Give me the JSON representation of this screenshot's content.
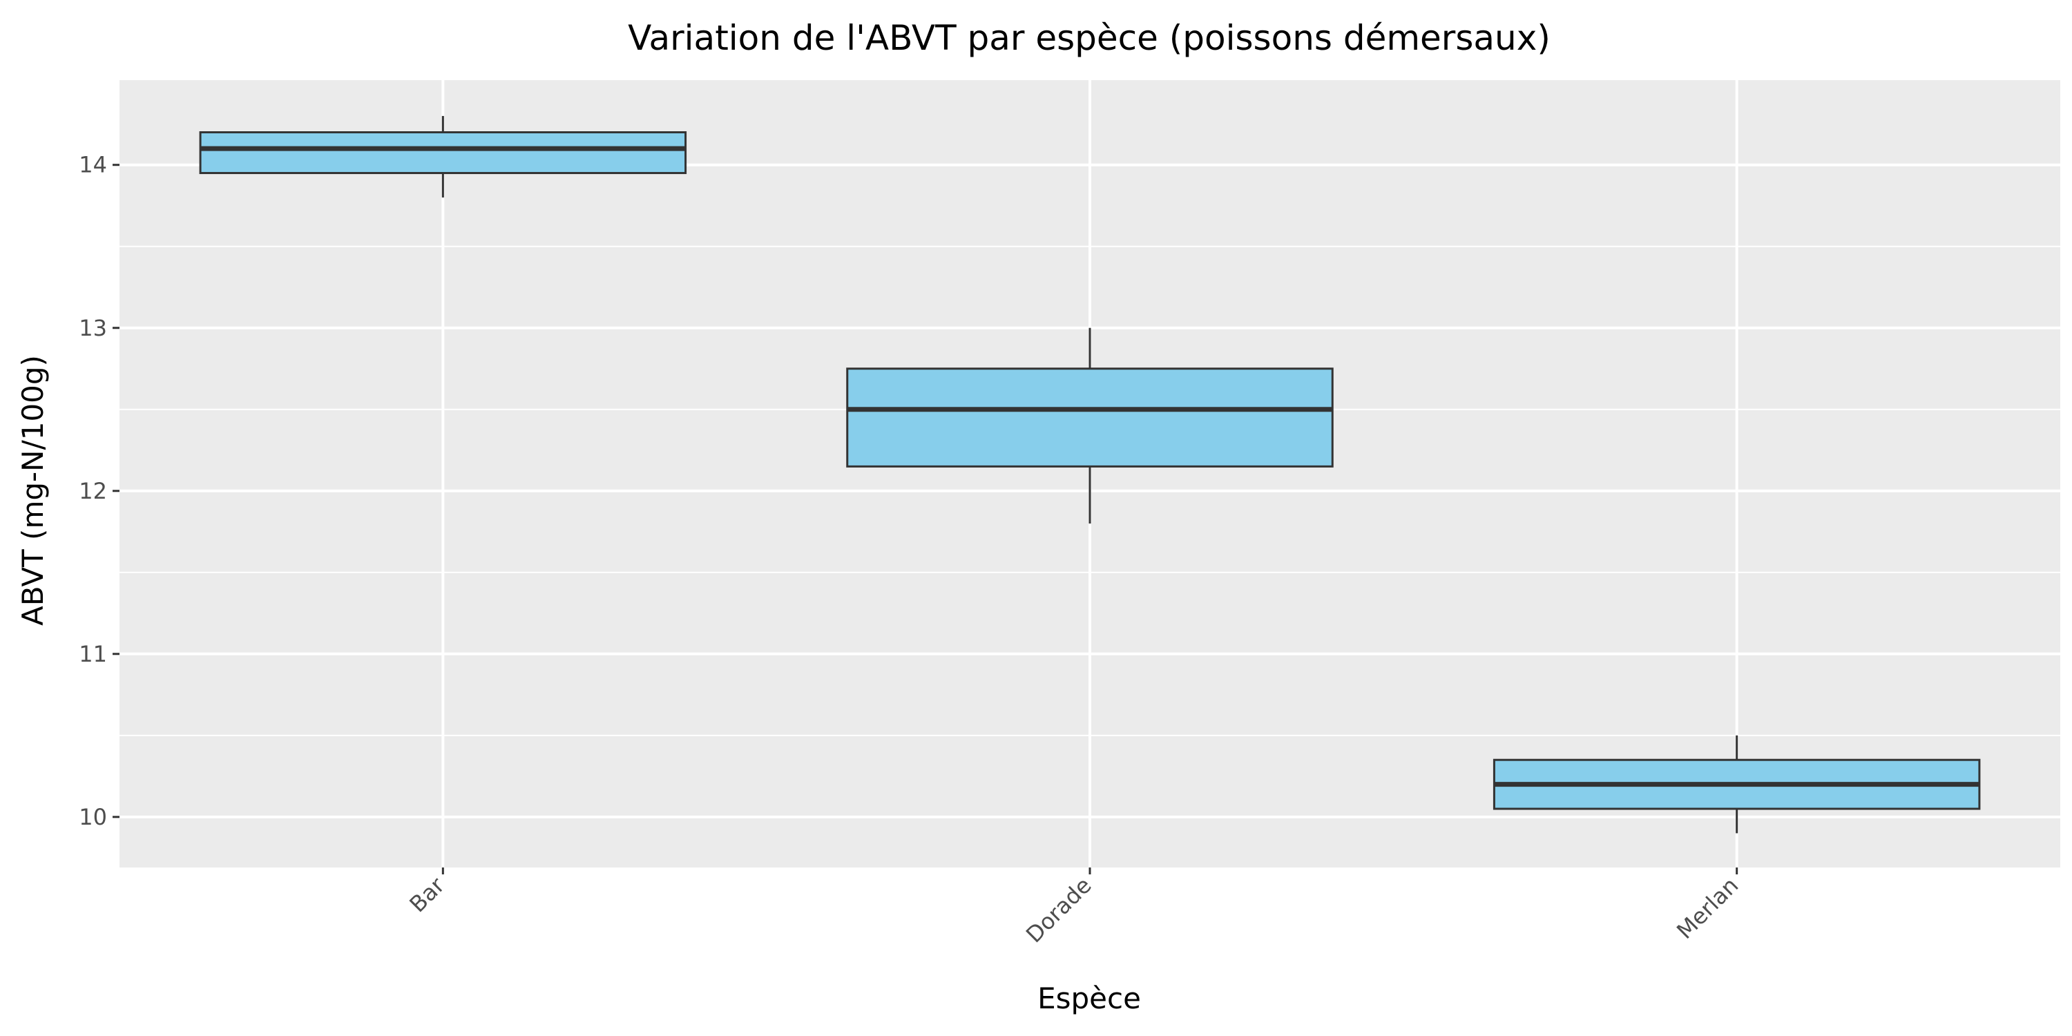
{
  "chart_data": {
    "type": "boxplot",
    "title": "Variation de l'ABVT par espèce (poissons démersaux)",
    "xlabel": "Espèce",
    "ylabel": "ABVT (mg-N/100g)",
    "categories": [
      "Bar",
      "Dorade",
      "Merlan"
    ],
    "boxes": [
      {
        "category": "Bar",
        "whisker_low": 13.8,
        "q1": 13.95,
        "median": 14.1,
        "q3": 14.2,
        "whisker_high": 14.3
      },
      {
        "category": "Dorade",
        "whisker_low": 11.8,
        "q1": 12.15,
        "median": 12.5,
        "q3": 12.75,
        "whisker_high": 13.0
      },
      {
        "category": "Merlan",
        "whisker_low": 9.9,
        "q1": 10.05,
        "median": 10.2,
        "q3": 10.35,
        "whisker_high": 10.5
      }
    ],
    "ylim": [
      9.69,
      14.52
    ],
    "yticks": [
      10,
      11,
      12,
      13,
      14
    ],
    "grid": true,
    "legend": "none",
    "colors": {
      "box_fill": "#87CEEB",
      "box_stroke": "#333333",
      "panel_background": "#EBEBEB",
      "grid": "#FFFFFF"
    }
  }
}
